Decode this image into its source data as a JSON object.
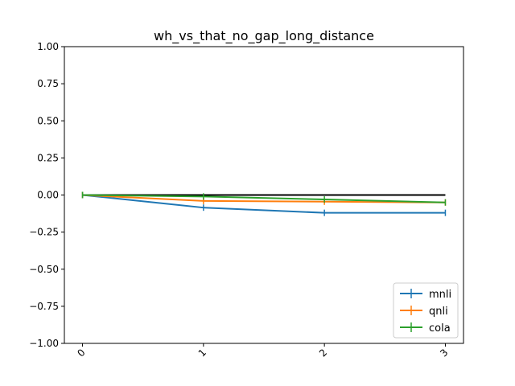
{
  "chart_data": {
    "type": "line",
    "title": "wh_vs_that_no_gap_long_distance",
    "xlabel": "",
    "ylabel": "",
    "x": [
      0,
      1,
      2,
      3
    ],
    "x_tick_labels": [
      "0",
      "1",
      "2",
      "3"
    ],
    "ylim": [
      -1.0,
      1.0
    ],
    "y_tick_values": [
      -1.0,
      -0.75,
      -0.5,
      -0.25,
      0.0,
      0.25,
      0.5,
      0.75,
      1.0
    ],
    "y_tick_labels": [
      "−1.00",
      "−0.75",
      "−0.50",
      "−0.25",
      "0.00",
      "0.25",
      "0.50",
      "0.75",
      "1.00"
    ],
    "grid": false,
    "legend_position": "lower-right",
    "reference_line": {
      "y": 0.0,
      "color": "#000000"
    },
    "series": [
      {
        "name": "mnli",
        "color": "#1f77b4",
        "values": [
          0.0,
          -0.085,
          -0.12,
          -0.12
        ]
      },
      {
        "name": "qnli",
        "color": "#ff7f0e",
        "values": [
          0.0,
          -0.04,
          -0.045,
          -0.05
        ]
      },
      {
        "name": "cola",
        "color": "#2ca02c",
        "values": [
          0.0,
          -0.01,
          -0.03,
          -0.05
        ]
      }
    ]
  }
}
